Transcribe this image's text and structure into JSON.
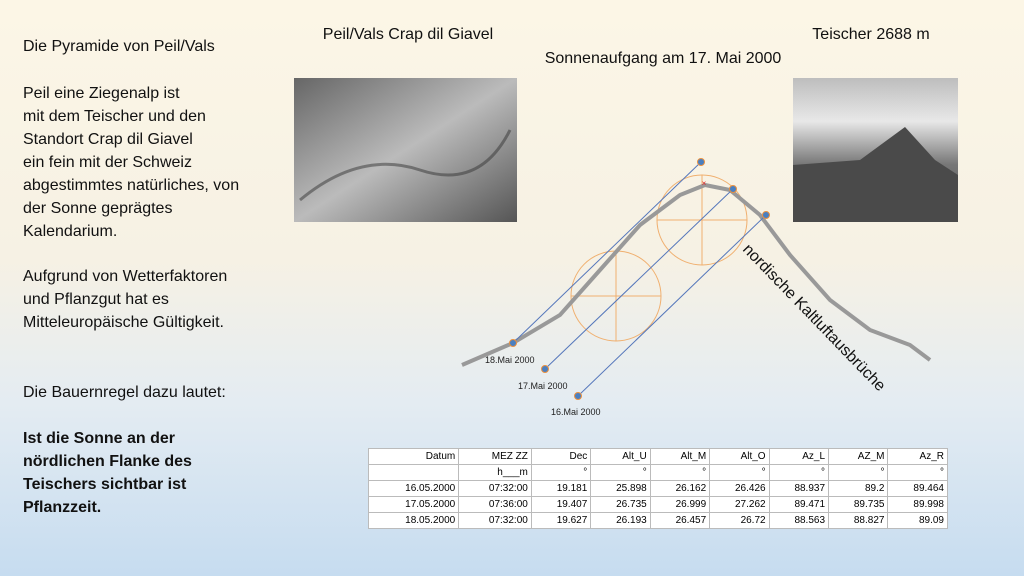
{
  "left_text": {
    "title": "Die Pyramide von Peil/Vals",
    "paragraph1": [
      "Peil eine Ziegenalp ist",
      "mit dem Teischer und den",
      "Standort Crap dil Giavel",
      "ein fein mit der Schweiz",
      "abgestimmtes natürliches, von",
      "der Sonne geprägtes",
      "Kalendarium."
    ],
    "paragraph2": [
      "Aufgrund von Wetterfaktoren",
      "und Pflanzgut hat es",
      "Mitteleuropäische Gültigkeit."
    ],
    "rule_intro": "Die Bauernregel dazu lautet:",
    "rule": [
      "Ist die Sonne an der",
      "nördlichen Flanke des",
      "Teischers sichtbar ist",
      "Pflanzzeit."
    ]
  },
  "captions": {
    "photo_left": "Peil/Vals Crap dil Giavel",
    "photo_right": "Teischer 2688 m",
    "subtitle": "Sonnenaufgang am 17. Mai 2000"
  },
  "diagram": {
    "slope_label": "nordische Kaltluftausbrüche",
    "date_labels": [
      "18.Mai 2000",
      "17.Mai 2000",
      "16.Mai 2000"
    ]
  },
  "table": {
    "header": [
      "Datum",
      "MEZ ZZ",
      "Dec",
      "Alt_U",
      "Alt_M",
      "Alt_O",
      "Az_L",
      "AZ_M",
      "Az_R"
    ],
    "units": [
      "h___m",
      "°",
      "°",
      "°",
      "°",
      "°",
      "°",
      "°"
    ],
    "rows": [
      [
        "16.05.2000",
        "07:32:00",
        "19.181",
        "25.898",
        "26.162",
        "26.426",
        "88.937",
        "89.2",
        "89.464"
      ],
      [
        "17.05.2000",
        "07:36:00",
        "19.407",
        "26.735",
        "26.999",
        "27.262",
        "89.471",
        "89.735",
        "89.998"
      ],
      [
        "18.05.2000",
        "07:32:00",
        "19.627",
        "26.193",
        "26.457",
        "26.72",
        "88.563",
        "88.827",
        "89.09"
      ]
    ]
  }
}
